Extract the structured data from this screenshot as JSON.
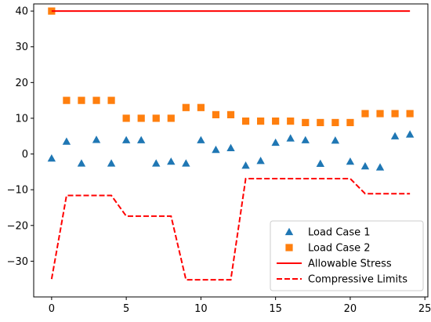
{
  "chart_data": {
    "type": "scatter",
    "title": "",
    "xlabel": "",
    "ylabel": "",
    "xlim": [
      -1.2,
      25.2
    ],
    "ylim": [
      -40,
      42
    ],
    "xticks": [
      0,
      5,
      10,
      15,
      20,
      25
    ],
    "yticks": [
      -30,
      -20,
      -10,
      0,
      10,
      20,
      30,
      40
    ],
    "grid": false,
    "legend_position": "lower-right",
    "series": [
      {
        "name": "Load Case 1",
        "kind": "scatter",
        "marker": "triangle",
        "color": "#1f77b4",
        "x": [
          0,
          1,
          2,
          3,
          4,
          5,
          6,
          7,
          8,
          9,
          10,
          11,
          12,
          13,
          14,
          15,
          16,
          17,
          18,
          19,
          20,
          21,
          22,
          23,
          24
        ],
        "y": [
          -1.2,
          3.5,
          -2.6,
          4.0,
          -2.6,
          3.9,
          3.9,
          -2.6,
          -2.1,
          -2.6,
          3.9,
          1.2,
          1.7,
          -3.2,
          -1.9,
          3.2,
          4.4,
          3.9,
          -2.7,
          3.8,
          -2.1,
          -3.4,
          -3.7,
          5.0,
          5.5
        ]
      },
      {
        "name": "Load Case 2",
        "kind": "scatter",
        "marker": "square",
        "color": "#ff7f0e",
        "x": [
          0,
          1,
          2,
          3,
          4,
          5,
          6,
          7,
          8,
          9,
          10,
          11,
          12,
          13,
          14,
          15,
          16,
          17,
          18,
          19,
          20,
          21,
          22,
          23,
          24
        ],
        "y": [
          40,
          15,
          15,
          15,
          15,
          10,
          10,
          10,
          10,
          13,
          13,
          11,
          11,
          9.2,
          9.2,
          9.2,
          9.2,
          8.8,
          8.8,
          8.8,
          8.8,
          11.3,
          11.3,
          11.3,
          11.3
        ]
      },
      {
        "name": "Allowable Stress",
        "kind": "line",
        "style": "solid",
        "color": "#ff0000",
        "x": [
          0,
          24
        ],
        "y": [
          40,
          40
        ]
      },
      {
        "name": "Compressive Limits",
        "kind": "line",
        "style": "dashed",
        "color": "#ff0000",
        "x": [
          0,
          1,
          2,
          3,
          4,
          5,
          6,
          7,
          8,
          9,
          10,
          11,
          12,
          13,
          14,
          15,
          16,
          17,
          18,
          19,
          20,
          21,
          22,
          23,
          24
        ],
        "y": [
          -35,
          -11.6,
          -11.6,
          -11.6,
          -11.6,
          -17.4,
          -17.4,
          -17.4,
          -17.4,
          -35.2,
          -35.2,
          -35.2,
          -35.2,
          -6.9,
          -6.9,
          -6.9,
          -6.9,
          -6.9,
          -6.9,
          -6.9,
          -6.9,
          -11.1,
          -11.1,
          -11.1,
          -11.1
        ]
      }
    ]
  }
}
